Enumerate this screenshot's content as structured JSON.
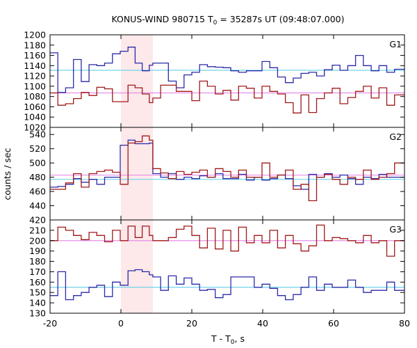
{
  "chart_data": {
    "type": "line",
    "title": {
      "prefix": "KONUS-WIND 980715 T",
      "sub": "0",
      "suffix": " = 35287s UT (09:48:07.000)"
    },
    "xlabel": {
      "prefix": "T - T",
      "sub": "0",
      "suffix": ", s"
    },
    "ylabel": "counts / sec",
    "xlim": [
      -20,
      80
    ],
    "x_ticks": [
      -20,
      0,
      20,
      40,
      60,
      80
    ],
    "highlight_interval": [
      0,
      9
    ],
    "colors": {
      "blue_series": "#2a2aa8",
      "red_series": "#a01818",
      "blue_background": "#6fd3e8",
      "red_background": "#e58ee8",
      "highlight": "#fde8ea"
    },
    "bin_edges": [
      -20,
      -17.8,
      -15.6,
      -13.4,
      -11.2,
      -9,
      -6.8,
      -4.6,
      -2.4,
      -0.2,
      2,
      4,
      6,
      8,
      9,
      11.2,
      13.4,
      15.6,
      17.8,
      20,
      22.2,
      24.4,
      26.6,
      28.8,
      31,
      33.2,
      35.4,
      37.6,
      39.8,
      42,
      44.2,
      46.4,
      48.6,
      50.8,
      53,
      55.2,
      57.4,
      59.6,
      61.8,
      64,
      66.2,
      68.4,
      70.6,
      72.8,
      75,
      77.2,
      80
    ],
    "panels": [
      {
        "label": "G1",
        "ylim": [
          1020,
          1200
        ],
        "y_ticks": [
          1020,
          1040,
          1060,
          1080,
          1100,
          1120,
          1140,
          1160,
          1180,
          1200
        ],
        "background_blue": 1131,
        "background_red": 1087,
        "series": [
          {
            "color_key": "blue_series",
            "values": [
              1165,
              1088,
              1097,
              1152,
              1109,
              1142,
              1140,
              1145,
              1163,
              1168,
              1176,
              1145,
              1130,
              1141,
              1145,
              1145,
              1110,
              1097,
              1122,
              1127,
              1142,
              1138,
              1137,
              1136,
              1130,
              1127,
              1130,
              1130,
              1148,
              1136,
              1118,
              1107,
              1116,
              1125,
              1127,
              1120,
              1132,
              1141,
              1131,
              1140,
              1160,
              1140,
              1130,
              1140,
              1127,
              1133
            ]
          },
          {
            "color_key": "red_series",
            "values": [
              1087,
              1063,
              1066,
              1076,
              1088,
              1082,
              1098,
              1095,
              1070,
              1070,
              1102,
              1097,
              1085,
              1068,
              1077,
              1102,
              1102,
              1090,
              1090,
              1072,
              1110,
              1100,
              1085,
              1092,
              1073,
              1100,
              1096,
              1077,
              1100,
              1090,
              1085,
              1068,
              1048,
              1083,
              1049,
              1076,
              1087,
              1096,
              1066,
              1078,
              1090,
              1100,
              1077,
              1097,
              1063,
              1083
            ]
          }
        ]
      },
      {
        "label": "G2",
        "ylim": [
          420,
          550
        ],
        "y_ticks": [
          420,
          440,
          460,
          480,
          500,
          520,
          540
        ],
        "background_blue": 477,
        "background_red": 483,
        "series": [
          {
            "color_key": "blue_series",
            "values": [
              466,
              467,
              470,
              478,
              473,
              477,
              470,
              480,
              480,
              525,
              532,
              527,
              527,
              528,
              485,
              480,
              485,
              477,
              480,
              478,
              482,
              480,
              485,
              478,
              478,
              484,
              476,
              480,
              476,
              478,
              483,
              478,
              468,
              463,
              484,
              480,
              485,
              480,
              483,
              478,
              470,
              480,
              478,
              484,
              480,
              480
            ]
          },
          {
            "color_key": "red_series",
            "values": [
              463,
              463,
              472,
              485,
              466,
              485,
              488,
              490,
              487,
              470,
              528,
              530,
              538,
              532,
              492,
              486,
              478,
              488,
              484,
              487,
              490,
              480,
              492,
              488,
              480,
              490,
              480,
              480,
              500,
              480,
              483,
              490,
              463,
              470,
              447,
              480,
              484,
              477,
              470,
              480,
              477,
              490,
              477,
              480,
              485,
              500
            ]
          }
        ]
      },
      {
        "label": "G3",
        "ylim": [
          130,
          220
        ],
        "y_ticks": [
          130,
          140,
          150,
          160,
          170,
          180,
          190,
          200,
          210
        ],
        "background_blue": 155,
        "background_red": 200,
        "series": [
          {
            "color_key": "blue_series",
            "values": [
              147,
              170,
              143,
              147,
              150,
              155,
              157,
              146,
              160,
              157,
              171,
              172,
              170,
              167,
              165,
              152,
              166,
              158,
              164,
              158,
              152,
              153,
              145,
              148,
              165,
              165,
              165,
              155,
              158,
              154,
              147,
              143,
              148,
              155,
              165,
              152,
              158,
              155,
              155,
              162,
              155,
              150,
              152,
              152,
              160,
              152
            ]
          },
          {
            "color_key": "red_series",
            "values": [
              200,
              213,
              210,
              205,
              201,
              208,
              205,
              199,
              210,
              200,
              214,
              203,
              214,
              205,
              200,
              200,
              203,
              211,
              214,
              205,
              193,
              212,
              192,
              210,
              190,
              213,
              198,
              205,
              198,
              210,
              193,
              205,
              197,
              190,
              195,
              215,
              200,
              203,
              202,
              200,
              198,
              205,
              198,
              200,
              185,
              200
            ]
          }
        ]
      }
    ]
  }
}
